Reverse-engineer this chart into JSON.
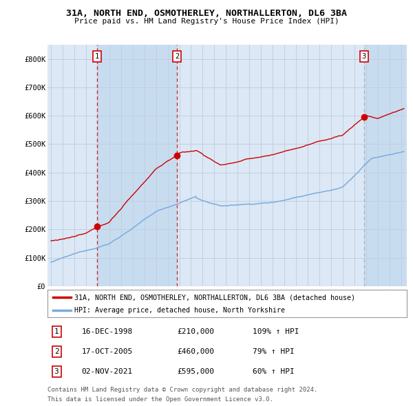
{
  "title": "31A, NORTH END, OSMOTHERLEY, NORTHALLERTON, DL6 3BA",
  "subtitle": "Price paid vs. HM Land Registry's House Price Index (HPI)",
  "ylim": [
    0,
    850000
  ],
  "yticks": [
    0,
    100000,
    200000,
    300000,
    400000,
    500000,
    600000,
    700000,
    800000
  ],
  "ytick_labels": [
    "£0",
    "£100K",
    "£200K",
    "£300K",
    "£400K",
    "£500K",
    "£600K",
    "£700K",
    "£800K"
  ],
  "xlim_start": 1994.7,
  "xlim_end": 2025.5,
  "xticks": [
    1995,
    1996,
    1997,
    1998,
    1999,
    2000,
    2001,
    2002,
    2003,
    2004,
    2005,
    2006,
    2007,
    2008,
    2009,
    2010,
    2011,
    2012,
    2013,
    2014,
    2015,
    2016,
    2017,
    2018,
    2019,
    2020,
    2021,
    2022,
    2023,
    2024,
    2025
  ],
  "background_color": "#ffffff",
  "plot_bg_color": "#dce8f5",
  "grid_color": "#c0cfdf",
  "red_line_color": "#cc0000",
  "blue_line_color": "#7aabde",
  "sale_marker_color": "#cc0000",
  "vline_color_sale": "#cc0000",
  "vline_color_last": "#aaaaaa",
  "shade_color": "#c8dcf0",
  "transactions": [
    {
      "label": 1,
      "date_year": 1998.96,
      "price": 210000
    },
    {
      "label": 2,
      "date_year": 2005.79,
      "price": 460000
    },
    {
      "label": 3,
      "date_year": 2021.83,
      "price": 595000
    }
  ],
  "legend_property_label": "31A, NORTH END, OSMOTHERLEY, NORTHALLERTON, DL6 3BA (detached house)",
  "legend_hpi_label": "HPI: Average price, detached house, North Yorkshire",
  "table_rows": [
    {
      "num": 1,
      "date": "16-DEC-1998",
      "price": "£210,000",
      "pct": "109%",
      "arrow": "↑",
      "hpi": "HPI"
    },
    {
      "num": 2,
      "date": "17-OCT-2005",
      "price": "£460,000",
      "pct": "79%",
      "arrow": "↑",
      "hpi": "HPI"
    },
    {
      "num": 3,
      "date": "02-NOV-2021",
      "price": "£595,000",
      "pct": "60%",
      "arrow": "↑",
      "hpi": "HPI"
    }
  ],
  "footer1": "Contains HM Land Registry data © Crown copyright and database right 2024.",
  "footer2": "This data is licensed under the Open Government Licence v3.0."
}
